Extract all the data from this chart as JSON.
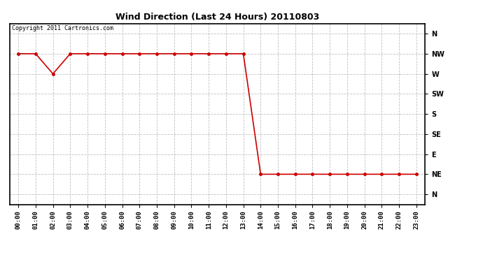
{
  "title": "Wind Direction (Last 24 Hours) 20110803",
  "copyright_text": "Copyright 2011 Cartronics.com",
  "line_color": "#cc0000",
  "background_color": "#ffffff",
  "grid_color": "#b0b0b0",
  "ytick_labels": [
    "N",
    "NW",
    "W",
    "SW",
    "S",
    "SE",
    "E",
    "NE",
    "N"
  ],
  "ytick_values": [
    8,
    7,
    6,
    5,
    4,
    3,
    2,
    1,
    0
  ],
  "x_hours": [
    0,
    1,
    2,
    3,
    4,
    5,
    6,
    7,
    8,
    9,
    10,
    11,
    12,
    13,
    14,
    15,
    16,
    17,
    18,
    19,
    20,
    21,
    22,
    23
  ],
  "x_labels": [
    "00:00",
    "01:00",
    "02:00",
    "03:00",
    "04:00",
    "05:00",
    "06:00",
    "07:00",
    "08:00",
    "09:00",
    "10:00",
    "11:00",
    "12:00",
    "13:00",
    "14:00",
    "15:00",
    "16:00",
    "17:00",
    "18:00",
    "19:00",
    "20:00",
    "21:00",
    "22:00",
    "23:00"
  ],
  "wind_data": {
    "hours": [
      0,
      1,
      2,
      3,
      4,
      5,
      6,
      7,
      8,
      9,
      10,
      11,
      12,
      13,
      14,
      15,
      16,
      17,
      18,
      19,
      20,
      21,
      22,
      23
    ],
    "direction": [
      7,
      7,
      6,
      7,
      7,
      7,
      7,
      7,
      7,
      7,
      7,
      7,
      7,
      7,
      1,
      1,
      1,
      1,
      1,
      1,
      1,
      1,
      1,
      1
    ]
  },
  "ylim": [
    -0.5,
    8.5
  ],
  "xlim": [
    -0.5,
    23.5
  ],
  "title_fontsize": 9,
  "tick_fontsize": 6.5,
  "copyright_fontsize": 6,
  "marker_size": 3,
  "line_width": 1.2
}
